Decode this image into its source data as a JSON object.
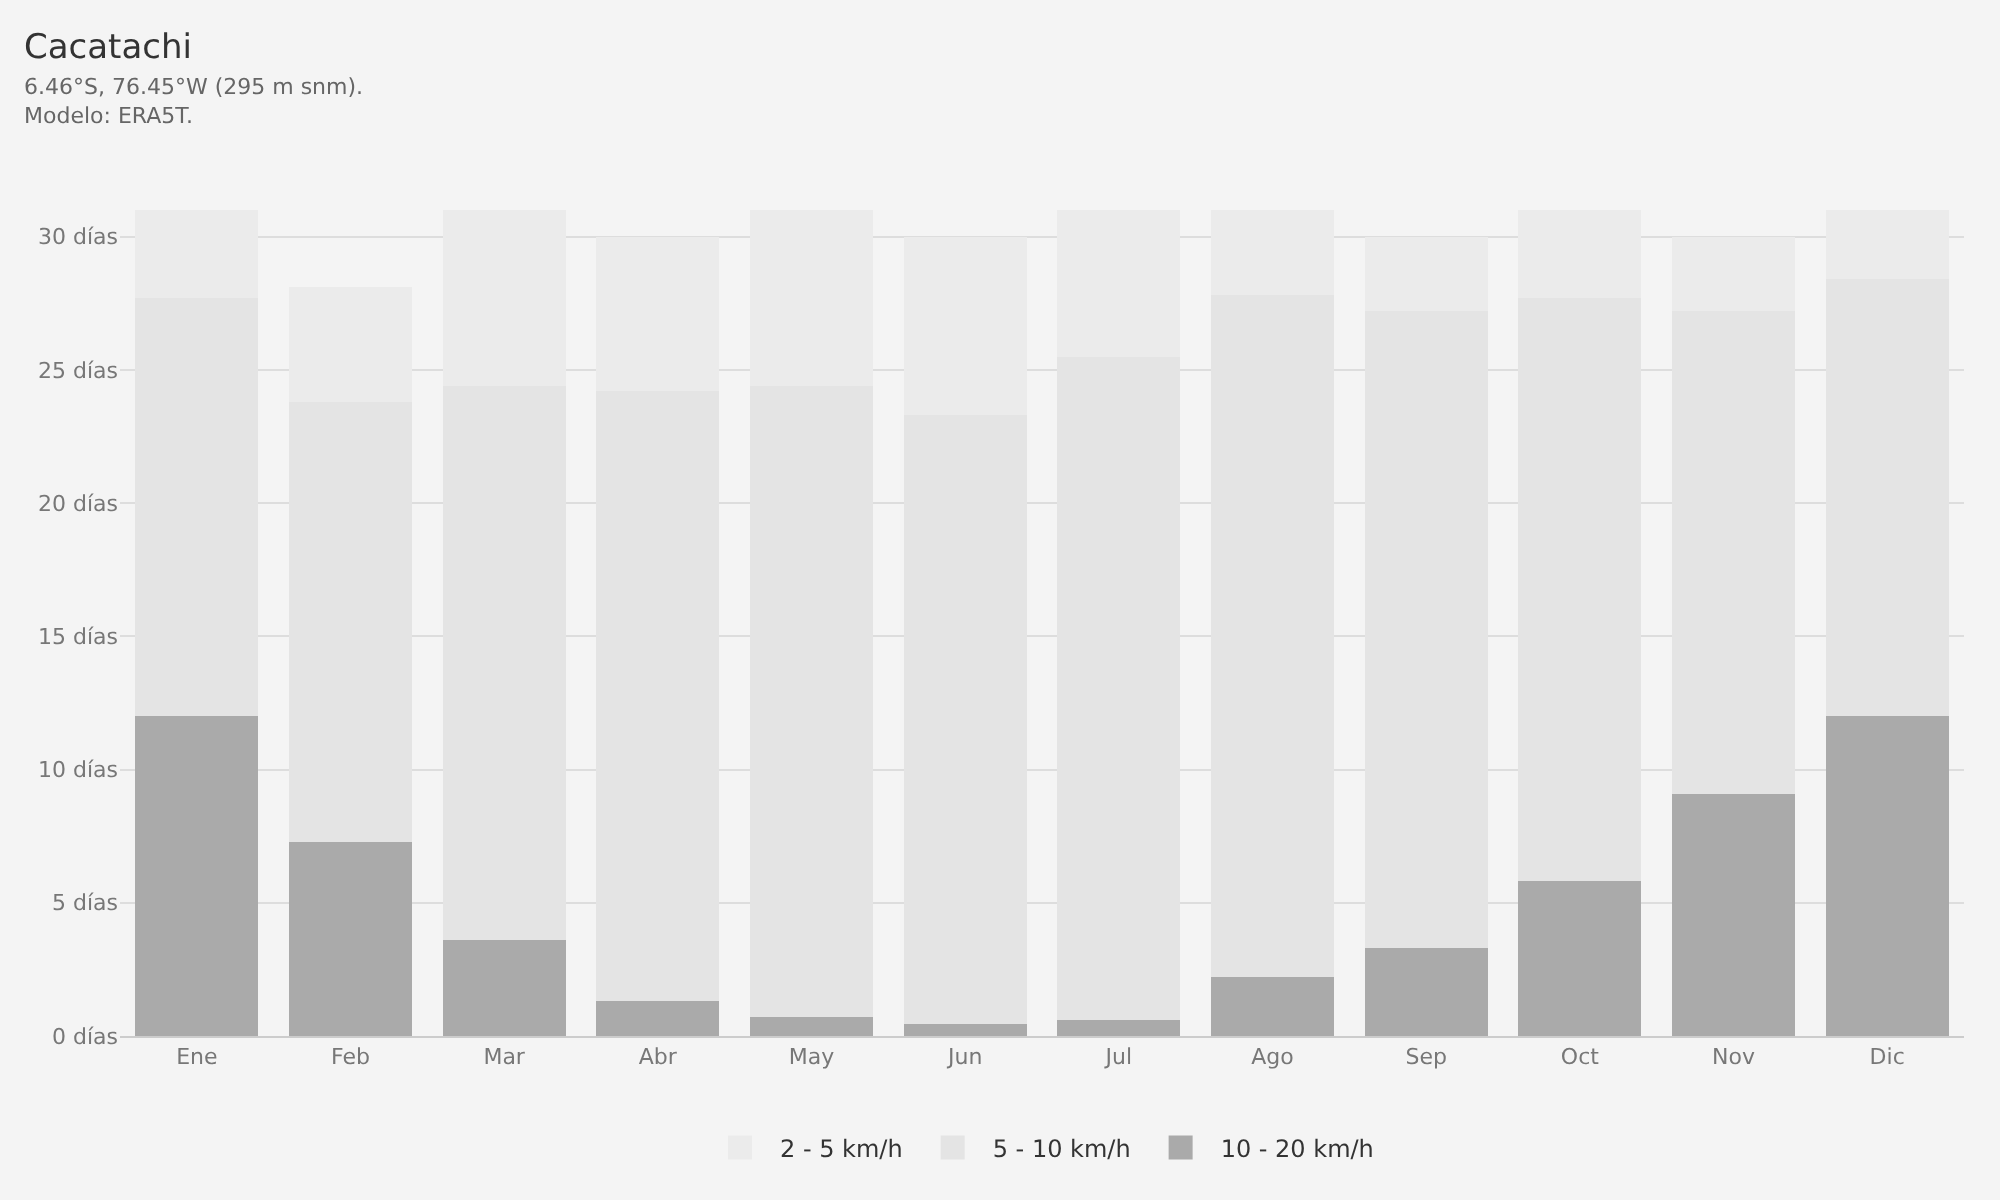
{
  "chart_data": {
    "type": "bar",
    "title": "Cacatachi",
    "subtitle": "6.46°S, 76.45°W (295 m snm).\nModelo: ERA5T.",
    "categories": [
      "Ene",
      "Feb",
      "Mar",
      "Abr",
      "May",
      "Jun",
      "Jul",
      "Ago",
      "Sep",
      "Oct",
      "Nov",
      "Dic"
    ],
    "stacked": true,
    "series": [
      {
        "name": "10 - 20 km/h",
        "color": "#aaaaaa",
        "values": [
          12.0,
          7.3,
          3.6,
          1.3,
          0.7,
          0.45,
          0.6,
          2.2,
          3.3,
          5.8,
          9.1,
          12.0
        ]
      },
      {
        "name": "5 - 10 km/h",
        "color": "#e4e4e4",
        "values": [
          15.7,
          16.5,
          20.8,
          22.9,
          23.7,
          22.85,
          24.9,
          25.6,
          23.9,
          21.9,
          18.1,
          16.4
        ]
      },
      {
        "name": "2 - 5 km/h",
        "color": "#ebebeb",
        "values": [
          3.3,
          4.3,
          6.6,
          5.8,
          6.6,
          6.7,
          5.5,
          3.2,
          2.8,
          3.3,
          2.8,
          2.6
        ]
      }
    ],
    "ylim": [
      0,
      31
    ],
    "yticks": [
      {
        "value": 0,
        "label": "0 días"
      },
      {
        "value": 5,
        "label": "5 días"
      },
      {
        "value": 10,
        "label": "10 días"
      },
      {
        "value": 15,
        "label": "15 días"
      },
      {
        "value": 20,
        "label": "20 días"
      },
      {
        "value": 25,
        "label": "25 días"
      },
      {
        "value": 30,
        "label": "30 días"
      }
    ],
    "grid": "y",
    "legend": "bottom"
  }
}
